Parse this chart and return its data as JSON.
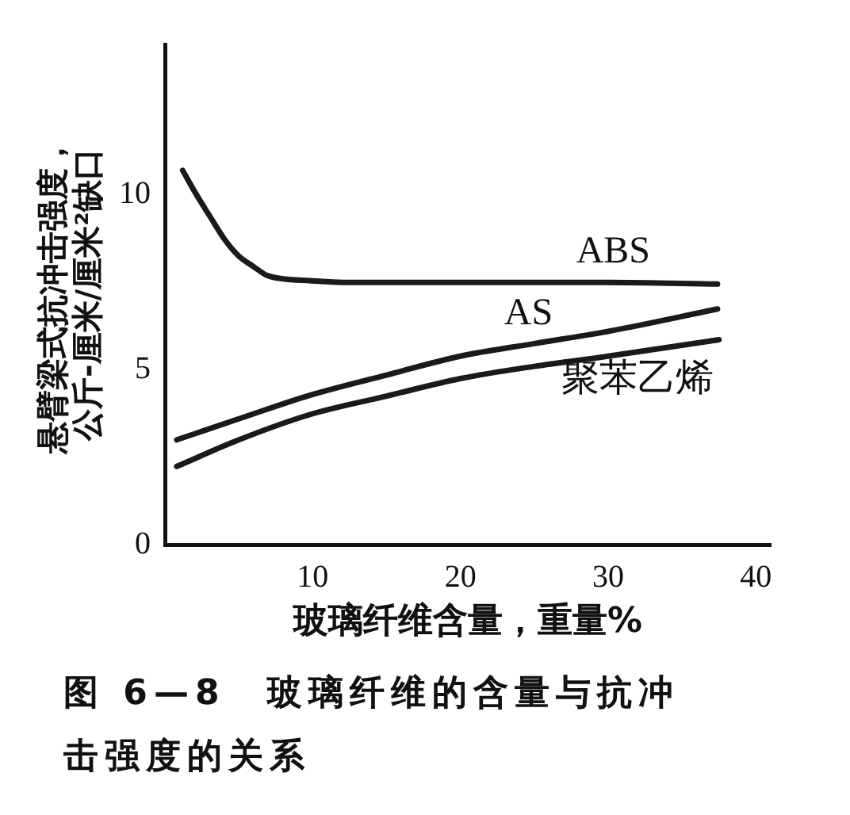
{
  "chart_data": {
    "type": "line",
    "xlabel": "玻璃纤维含量，重量%",
    "ylabel": "悬臂梁式抗冲击强度，公斤-厘米/厘米²缺口",
    "annotations": [
      "图 6—8　玻璃纤维的含量与抗冲击强度的关系"
    ],
    "xlim": [
      0,
      41
    ],
    "xticks": [
      10,
      20,
      30,
      40
    ],
    "ylim": [
      0,
      14.3
    ],
    "yticks": [
      0,
      5,
      10
    ],
    "grid": false,
    "legend": false,
    "marker": "none",
    "line_style": "solid",
    "series": [
      {
        "name": "ABS",
        "color": "#1a1a1a",
        "x": [
          1.2,
          2,
          3.1,
          4,
          5,
          6,
          6.9,
          8,
          9.8,
          12,
          14.6,
          20,
          25,
          30,
          37.4
        ],
        "values": [
          10.7,
          10.1,
          9.35,
          8.75,
          8.25,
          7.95,
          7.7,
          7.6,
          7.55,
          7.5,
          7.5,
          7.5,
          7.5,
          7.5,
          7.45
        ]
      },
      {
        "name": "AS",
        "color": "#1a1a1a",
        "x": [
          0.8,
          5,
          9.8,
          15,
          20,
          25,
          30,
          37.4
        ],
        "values": [
          3.0,
          3.6,
          4.27,
          4.85,
          5.39,
          5.75,
          6.1,
          6.74
        ]
      },
      {
        "name": "聚苯乙烯",
        "color": "#1a1a1a",
        "x": [
          0.8,
          5,
          9.8,
          15,
          20,
          25,
          30,
          37.5
        ],
        "values": [
          2.24,
          3.0,
          3.72,
          4.25,
          4.75,
          5.1,
          5.39,
          5.86
        ]
      }
    ]
  }
}
